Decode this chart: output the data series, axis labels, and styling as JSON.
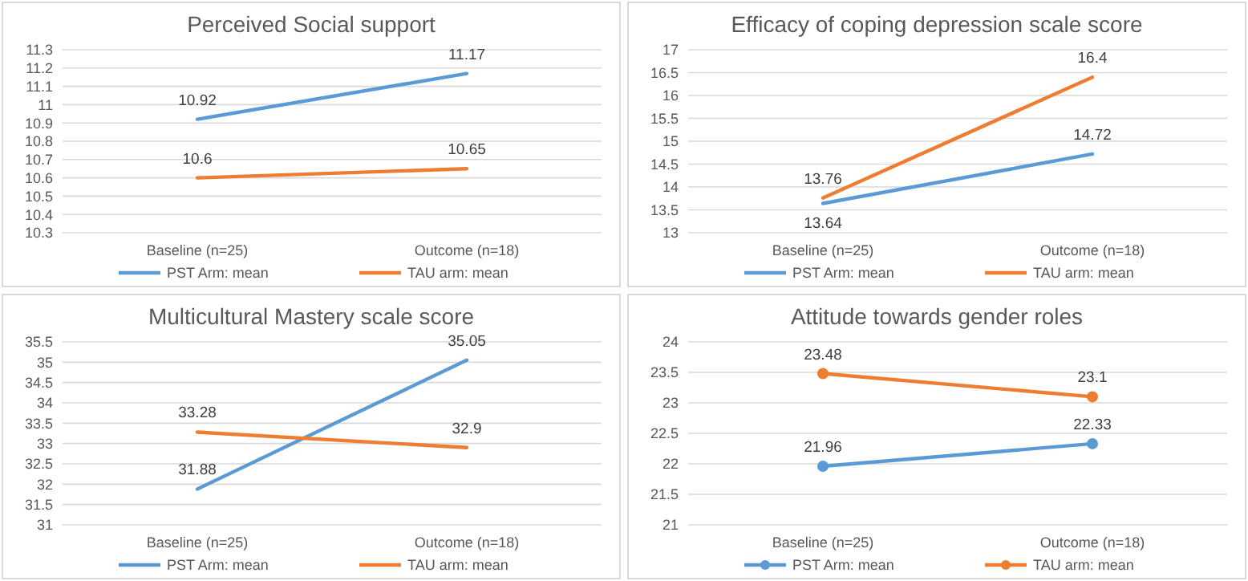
{
  "chart_data": [
    {
      "type": "line",
      "title": "Perceived Social support",
      "categories": [
        "Baseline (n=25)",
        "Outcome (n=18)"
      ],
      "series": [
        {
          "name": "PST Arm: mean",
          "color": "#5b9bd5",
          "values": [
            10.92,
            11.17
          ]
        },
        {
          "name": "TAU arm: mean",
          "color": "#ed7d31",
          "values": [
            10.6,
            10.65
          ]
        }
      ],
      "ylim": [
        10.3,
        11.3
      ],
      "yticks": [
        10.3,
        10.4,
        10.5,
        10.6,
        10.7,
        10.8,
        10.9,
        11,
        11.1,
        11.2,
        11.3
      ],
      "grid": "y",
      "legend": "bottom",
      "data_labels": true,
      "marker": "none"
    },
    {
      "type": "line",
      "title": "Efficacy of coping depression scale score",
      "categories": [
        "Baseline (n=25)",
        "Outcome (n=18)"
      ],
      "series": [
        {
          "name": "PST Arm: mean",
          "color": "#5b9bd5",
          "values": [
            13.64,
            14.72
          ]
        },
        {
          "name": "TAU arm: mean",
          "color": "#ed7d31",
          "values": [
            13.76,
            16.4
          ]
        }
      ],
      "ylim": [
        13,
        17
      ],
      "yticks": [
        13,
        13.5,
        14,
        14.5,
        15,
        15.5,
        16,
        16.5,
        17
      ],
      "grid": "y",
      "legend": "bottom",
      "data_labels": true,
      "marker": "none"
    },
    {
      "type": "line",
      "title": "Multicultural Mastery scale score",
      "categories": [
        "Baseline (n=25)",
        "Outcome (n=18)"
      ],
      "series": [
        {
          "name": "PST Arm: mean",
          "color": "#5b9bd5",
          "values": [
            31.88,
            35.05
          ]
        },
        {
          "name": "TAU arm: mean",
          "color": "#ed7d31",
          "values": [
            33.28,
            32.9
          ]
        }
      ],
      "ylim": [
        31,
        35.5
      ],
      "yticks": [
        31,
        31.5,
        32,
        32.5,
        33,
        33.5,
        34,
        34.5,
        35,
        35.5
      ],
      "grid": "y",
      "legend": "bottom",
      "data_labels": true,
      "marker": "none"
    },
    {
      "type": "line",
      "title": "Attitude towards gender roles",
      "categories": [
        "Baseline (n=25)",
        "Outcome (n=18)"
      ],
      "series": [
        {
          "name": "PST Arm: mean",
          "color": "#5b9bd5",
          "values": [
            21.96,
            22.33
          ]
        },
        {
          "name": "TAU arm: mean",
          "color": "#ed7d31",
          "values": [
            23.48,
            23.1
          ]
        }
      ],
      "ylim": [
        21,
        24
      ],
      "yticks": [
        21,
        21.5,
        22,
        22.5,
        23,
        23.5,
        24
      ],
      "grid": "y",
      "legend": "bottom",
      "data_labels": true,
      "marker": "circle"
    }
  ]
}
